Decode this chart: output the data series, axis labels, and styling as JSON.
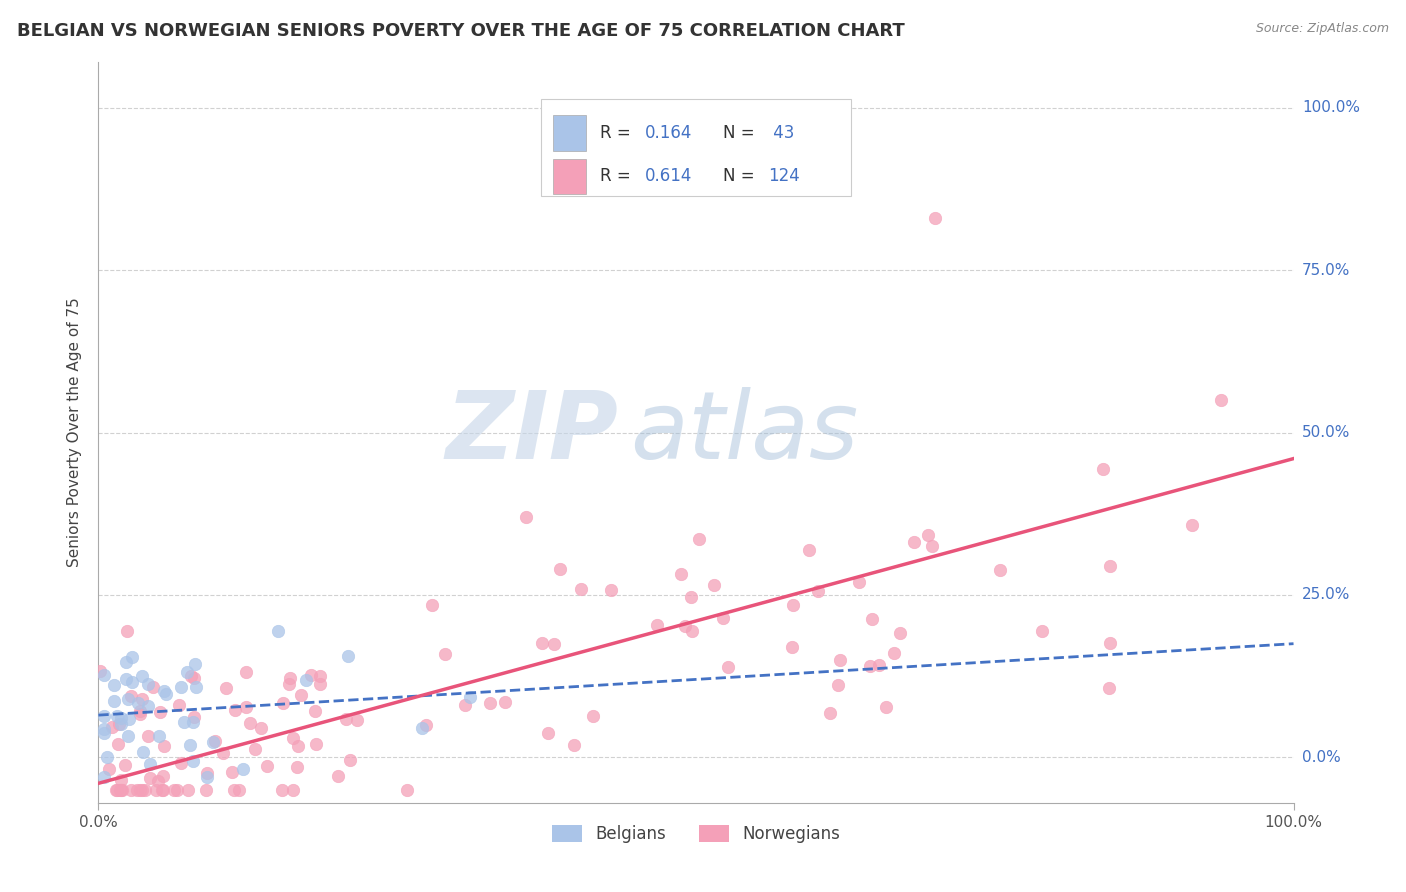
{
  "title": "BELGIAN VS NORWEGIAN SENIORS POVERTY OVER THE AGE OF 75 CORRELATION CHART",
  "source": "Source: ZipAtlas.com",
  "ylabel": "Seniors Poverty Over the Age of 75",
  "background_color": "#ffffff",
  "grid_color": "#cccccc",
  "watermark_zip": "ZIP",
  "watermark_atlas": "atlas",
  "belgian_color": "#aac4e8",
  "norwegian_color": "#f4a0b8",
  "belgian_line_color": "#4472c4",
  "norwegian_line_color": "#e8547a",
  "ytick_color": "#4472c4",
  "title_color": "#333333",
  "R_belgian": 0.164,
  "N_belgian": 43,
  "R_norwegian": 0.614,
  "N_norwegian": 124,
  "bel_trend_x0": 0.0,
  "bel_trend_x1": 1.0,
  "bel_trend_y0": 0.065,
  "bel_trend_y1": 0.175,
  "nor_trend_x0": 0.0,
  "nor_trend_x1": 1.0,
  "nor_trend_y0": -0.04,
  "nor_trend_y1": 0.46,
  "xlim": [
    0.0,
    1.0
  ],
  "ylim": [
    -0.07,
    1.07
  ],
  "yticks": [
    0.0,
    0.25,
    0.5,
    0.75,
    1.0
  ],
  "ytick_labels": [
    "0.0%",
    "25.0%",
    "50.0%",
    "75.0%",
    "100.0%"
  ],
  "xtick_labels": [
    "0.0%",
    "100.0%"
  ]
}
